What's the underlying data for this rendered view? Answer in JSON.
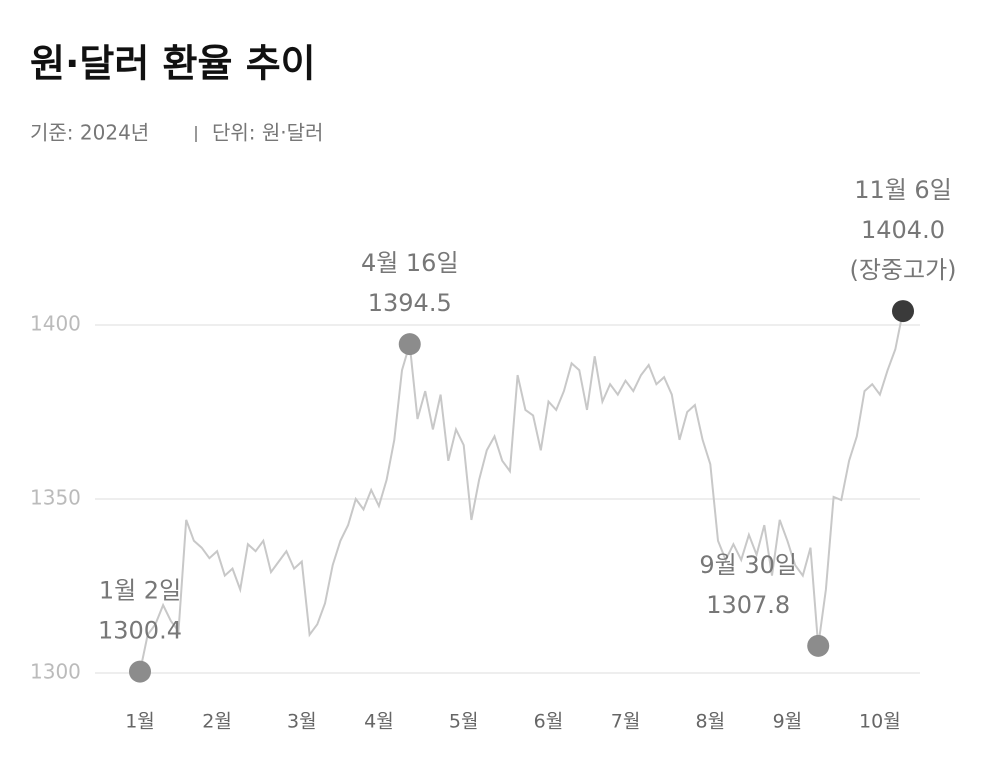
{
  "chart_data": {
    "type": "line",
    "title": "원·달러 환율 추이",
    "subtitle": "기준: 2024년",
    "unit": "단위: 원·달러",
    "categories": [
      "1월",
      null,
      null,
      null,
      null,
      null,
      null,
      null,
      null,
      null,
      "2월",
      null,
      null,
      null,
      null,
      null,
      null,
      null,
      null,
      null,
      null,
      "3월",
      null,
      null,
      null,
      null,
      null,
      null,
      null,
      null,
      null,
      "4월",
      null,
      null,
      null,
      null,
      null,
      null,
      null,
      null,
      null,
      null,
      "5월",
      null,
      null,
      null,
      null,
      null,
      null,
      null,
      null,
      null,
      null,
      "6월",
      null,
      null,
      null,
      null,
      null,
      null,
      null,
      null,
      null,
      "7월",
      null,
      null,
      null,
      null,
      null,
      null,
      null,
      null,
      null,
      null,
      "8월",
      null,
      null,
      null,
      null,
      null,
      null,
      null,
      null,
      null,
      "9월",
      null,
      null,
      null,
      null,
      null,
      null,
      null,
      null,
      null,
      null,
      null,
      "10월",
      null,
      null,
      null
    ],
    "values": [
      1300.4,
      1311,
      1314,
      1319.5,
      1315,
      1312,
      1344,
      1338,
      1336,
      1333,
      1335,
      1328,
      1330,
      1324,
      1337,
      1335,
      1338,
      1329,
      1332,
      1335,
      1330,
      1332,
      1311,
      1314,
      1320,
      1331,
      1338,
      1342.5,
      1350,
      1347,
      1352.6,
      1348,
      1355.5,
      1367,
      1387,
      1394.5,
      1373,
      1381,
      1370,
      1380,
      1361,
      1370,
      1365.5,
      1344,
      1355.5,
      1364,
      1368,
      1361,
      1358,
      1385.6,
      1375.6,
      1374,
      1364,
      1378,
      1375.6,
      1381,
      1389,
      1387,
      1375.6,
      1391,
      1378,
      1383,
      1380,
      1384,
      1381,
      1385.6,
      1388.5,
      1383,
      1385,
      1380,
      1367,
      1375,
      1377,
      1367,
      1360,
      1338,
      1332.5,
      1337,
      1332.5,
      1339.7,
      1334,
      1342.5,
      1328,
      1344,
      1338,
      1331,
      1328,
      1336,
      1307.8,
      1324,
      1350.6,
      1349.7,
      1361,
      1368,
      1381,
      1383,
      1380,
      1387,
      1393,
      1404.0
    ],
    "value_labels": [
      "1300.4",
      null,
      null,
      null,
      null,
      null,
      null,
      null,
      null,
      null,
      null,
      null,
      null,
      null,
      null,
      null,
      null,
      null,
      null,
      null,
      null,
      null,
      null,
      null,
      null,
      null,
      null,
      null,
      null,
      null,
      null,
      null,
      null,
      null,
      null,
      "1394.5",
      null,
      null,
      null,
      null,
      null,
      null,
      null,
      null,
      null,
      null,
      null,
      null,
      null,
      null,
      null,
      null,
      null,
      null,
      null,
      null,
      null,
      null,
      null,
      null,
      null,
      null,
      null,
      null,
      null,
      null,
      null,
      null,
      null,
      null,
      null,
      null,
      null,
      null,
      null,
      null,
      null,
      null,
      null,
      null,
      null,
      null,
      null,
      null,
      null,
      null,
      null,
      null,
      "1307.8",
      null,
      null,
      null,
      null,
      null,
      null,
      null,
      null,
      null,
      null,
      "1404.0"
    ],
    "point_labels": [
      "1월 2일",
      null,
      null,
      null,
      null,
      null,
      null,
      null,
      null,
      null,
      null,
      null,
      null,
      null,
      null,
      null,
      null,
      null,
      null,
      null,
      null,
      null,
      null,
      null,
      null,
      null,
      null,
      null,
      null,
      null,
      null,
      null,
      null,
      null,
      null,
      "4월 16일",
      null,
      null,
      null,
      null,
      null,
      null,
      null,
      null,
      null,
      null,
      null,
      null,
      null,
      null,
      null,
      null,
      null,
      null,
      null,
      null,
      null,
      null,
      null,
      null,
      null,
      null,
      null,
      null,
      null,
      null,
      null,
      null,
      null,
      null,
      null,
      null,
      null,
      null,
      null,
      null,
      null,
      null,
      null,
      null,
      null,
      null,
      null,
      null,
      null,
      null,
      null,
      null,
      "9월 30일",
      null,
      null,
      null,
      null,
      null,
      null,
      null,
      null,
      null,
      null,
      "11월 6일"
    ],
    "point_notes": [
      null,
      null,
      null,
      null,
      null,
      null,
      null,
      null,
      null,
      null,
      null,
      null,
      null,
      null,
      null,
      null,
      null,
      null,
      null,
      null,
      null,
      null,
      null,
      null,
      null,
      null,
      null,
      null,
      null,
      null,
      null,
      null,
      null,
      null,
      null,
      null,
      null,
      null,
      null,
      null,
      null,
      null,
      null,
      null,
      null,
      null,
      null,
      null,
      null,
      null,
      null,
      null,
      null,
      null,
      null,
      null,
      null,
      null,
      null,
      null,
      null,
      null,
      null,
      null,
      null,
      null,
      null,
      null,
      null,
      null,
      null,
      null,
      null,
      null,
      null,
      null,
      null,
      null,
      null,
      null,
      null,
      null,
      null,
      null,
      null,
      null,
      null,
      null,
      null,
      null,
      null,
      null,
      null,
      null,
      null,
      null,
      null,
      null,
      null,
      "(장중고가)"
    ],
    "marker_colors": [
      "#8c8c8c",
      null,
      null,
      null,
      null,
      null,
      null,
      null,
      null,
      null,
      null,
      null,
      null,
      null,
      null,
      null,
      null,
      null,
      null,
      null,
      null,
      null,
      null,
      null,
      null,
      null,
      null,
      null,
      null,
      null,
      null,
      null,
      null,
      null,
      null,
      "#8c8c8c",
      null,
      null,
      null,
      null,
      null,
      null,
      null,
      null,
      null,
      null,
      null,
      null,
      null,
      null,
      null,
      null,
      null,
      null,
      null,
      null,
      null,
      null,
      null,
      null,
      null,
      null,
      null,
      null,
      null,
      null,
      null,
      null,
      null,
      null,
      null,
      null,
      null,
      null,
      null,
      null,
      null,
      null,
      null,
      null,
      null,
      null,
      null,
      null,
      null,
      null,
      null,
      null,
      "#8c8c8c",
      null,
      null,
      null,
      null,
      null,
      null,
      null,
      null,
      null,
      null,
      "#3a3a3a"
    ],
    "color": "#c8c8c8",
    "ylim": [
      1290,
      1410
    ],
    "yticks": [
      1300,
      1350,
      1400
    ],
    "grid": true
  }
}
